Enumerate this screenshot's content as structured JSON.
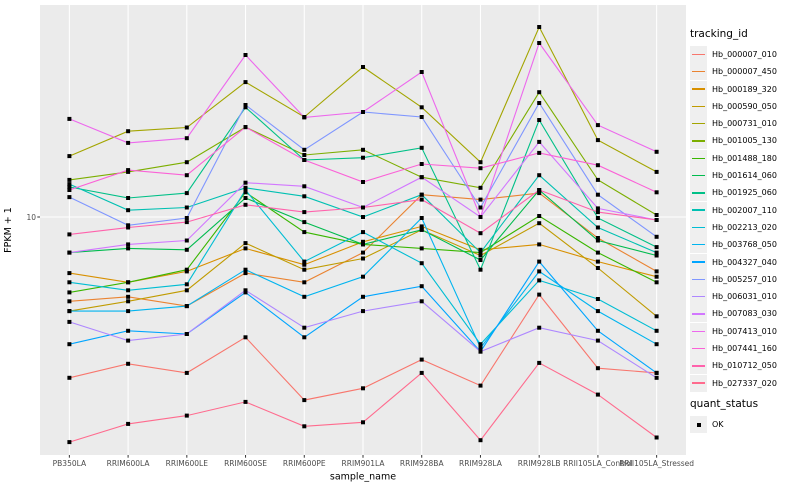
{
  "chart_data": {
    "type": "line",
    "title": "",
    "xlabel": "sample_name",
    "ylabel": "FPKM + 1",
    "y_scale": "log10",
    "y_tick_labels": [
      "10"
    ],
    "x_categories": [
      "PB350LA",
      "RRIM600LA",
      "RRIM600LE",
      "RRIM600SE",
      "RRIM600PE",
      "RRIM901LA",
      "RRIM928BA",
      "RRIM928LA",
      "RRIM928LB",
      "RRII105LA_Control",
      "RRII105LA_Stressed"
    ],
    "series": [
      {
        "name": "Hb_000007_010",
        "color": "#F8766D",
        "values": [
          2.0,
          2.3,
          2.1,
          3.0,
          1.6,
          1.8,
          2.4,
          1.85,
          4.6,
          2.2,
          2.1
        ]
      },
      {
        "name": "Hb_000007_450",
        "color": "#EA8331",
        "values": [
          4.3,
          4.5,
          4.1,
          5.7,
          5.2,
          7.0,
          12.5,
          11.9,
          12.7,
          8.1,
          5.8
        ]
      },
      {
        "name": "Hb_000189_320",
        "color": "#D89000",
        "values": [
          5.7,
          5.2,
          5.8,
          7.3,
          6.2,
          7.8,
          9.1,
          7.2,
          7.6,
          6.4,
          5.5
        ]
      },
      {
        "name": "Hb_000590_050",
        "color": "#C09B00",
        "values": [
          3.9,
          4.3,
          4.8,
          7.7,
          5.9,
          6.6,
          8.8,
          6.8,
          9.4,
          6.0,
          3.7
        ]
      },
      {
        "name": "Hb_000731_010",
        "color": "#A3A500",
        "values": [
          18.4,
          23.6,
          24.5,
          38.6,
          27.2,
          44.9,
          30.0,
          17.3,
          67.0,
          21.6,
          15.7
        ]
      },
      {
        "name": "Hb_001005_130",
        "color": "#7CAE00",
        "values": [
          14.5,
          15.7,
          17.3,
          24.6,
          18.6,
          19.6,
          14.9,
          13.4,
          34.9,
          14.5,
          10.2
        ]
      },
      {
        "name": "Hb_001488_180",
        "color": "#39B600",
        "values": [
          4.7,
          5.2,
          5.9,
          12.8,
          8.6,
          7.6,
          7.3,
          7.0,
          10.1,
          7.0,
          5.2
        ]
      },
      {
        "name": "Hb_001614_060",
        "color": "#00BB4E",
        "values": [
          7.0,
          7.3,
          7.2,
          12.1,
          9.5,
          7.6,
          8.8,
          6.5,
          13.1,
          7.9,
          6.8
        ]
      },
      {
        "name": "Hb_001925_060",
        "color": "#00C087",
        "values": [
          13.5,
          12.1,
          12.7,
          30.0,
          17.7,
          18.1,
          20.0,
          5.9,
          26.4,
          9.9,
          7.4
        ]
      },
      {
        "name": "Hb_002007_110",
        "color": "#00C0B2",
        "values": [
          13.9,
          10.7,
          11.0,
          13.4,
          12.3,
          10.0,
          12.5,
          7.0,
          15.2,
          9.0,
          7.0
        ]
      },
      {
        "name": "Hb_002213_020",
        "color": "#00BDD3",
        "values": [
          5.2,
          4.8,
          5.1,
          13.1,
          6.4,
          8.6,
          6.3,
          2.8,
          5.3,
          4.4,
          3.2
        ]
      },
      {
        "name": "Hb_003768_050",
        "color": "#00B4EF",
        "values": [
          3.9,
          3.9,
          4.1,
          5.9,
          4.5,
          5.5,
          9.9,
          2.7,
          5.8,
          3.9,
          2.8
        ]
      },
      {
        "name": "Hb_004327_040",
        "color": "#00A5FF",
        "values": [
          2.8,
          3.2,
          3.1,
          4.7,
          3.0,
          4.5,
          5.0,
          2.6,
          6.4,
          3.2,
          2.1
        ]
      },
      {
        "name": "Hb_005257_010",
        "color": "#7F96FF",
        "values": [
          12.2,
          9.2,
          9.9,
          30.7,
          19.6,
          28.6,
          27.2,
          11.0,
          31.3,
          12.5,
          8.2
        ]
      },
      {
        "name": "Hb_006031_010",
        "color": "#AE87FF",
        "values": [
          3.5,
          2.9,
          3.1,
          4.8,
          3.3,
          3.9,
          4.3,
          2.6,
          3.3,
          2.9,
          2.0
        ]
      },
      {
        "name": "Hb_007083_030",
        "color": "#D277FF",
        "values": [
          7.0,
          7.6,
          7.9,
          14.1,
          13.6,
          11.0,
          14.9,
          10.0,
          21.2,
          10.9,
          9.7
        ]
      },
      {
        "name": "Hb_007413_010",
        "color": "#ED68ED",
        "values": [
          26.7,
          21.0,
          22.0,
          50.6,
          27.1,
          28.6,
          42.7,
          10.0,
          57.1,
          25.1,
          19.2
        ]
      },
      {
        "name": "Hb_007441_160",
        "color": "#FB61D7",
        "values": [
          13.1,
          16.0,
          15.2,
          24.6,
          17.7,
          14.2,
          17.0,
          16.3,
          19.0,
          16.8,
          12.8
        ]
      },
      {
        "name": "Hb_010712_050",
        "color": "#FF62AC",
        "values": [
          8.4,
          9.0,
          9.5,
          11.3,
          10.5,
          11.0,
          11.9,
          8.5,
          13.1,
          10.5,
          9.7
        ]
      },
      {
        "name": "Hb_027337_020",
        "color": "#FF6B8E",
        "values": [
          1.05,
          1.26,
          1.37,
          1.57,
          1.23,
          1.28,
          2.1,
          1.07,
          2.32,
          1.69,
          1.1
        ]
      }
    ],
    "marker": {
      "shape": "filled-square",
      "color": "#000000"
    },
    "legend": {
      "tracking_title": "tracking_id",
      "quant_title": "quant_status",
      "quant_items": [
        {
          "label": "OK"
        }
      ],
      "position": "right"
    },
    "layout": {
      "panel_bg": "#EBEBEB",
      "grid_color": "#FFFFFF",
      "tick_text_color": "#4D4D4D",
      "legend_key_bg": "#EFEFEF",
      "grid": "major-only"
    }
  }
}
